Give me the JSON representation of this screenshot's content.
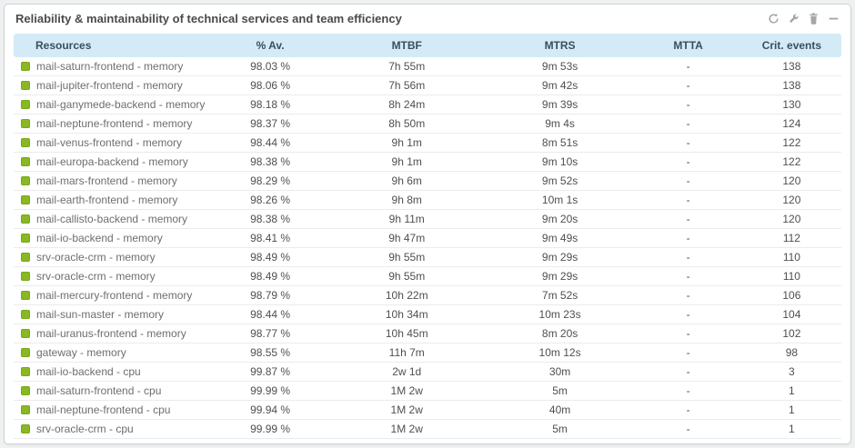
{
  "panel": {
    "title": "Reliability & maintainability of technical services and team efficiency",
    "toolbar": {
      "icons": [
        "refresh-icon",
        "wrench-icon",
        "trash-icon",
        "minimize-icon"
      ]
    },
    "colors": {
      "header_bg": "#d4ebf7",
      "status_ok": "#88b922",
      "panel_border": "#cfd3d5"
    }
  },
  "table": {
    "columns": [
      "Resources",
      "% Av.",
      "MTBF",
      "MTRS",
      "MTTA",
      "Crit. events"
    ],
    "rows": [
      {
        "resource": "mail-saturn-frontend - memory",
        "availability": "98.03 %",
        "mtbf": "7h 55m",
        "mtrs": "9m 53s",
        "mtta": "-",
        "crit_events": "138"
      },
      {
        "resource": "mail-jupiter-frontend - memory",
        "availability": "98.06 %",
        "mtbf": "7h 56m",
        "mtrs": "9m 42s",
        "mtta": "-",
        "crit_events": "138"
      },
      {
        "resource": "mail-ganymede-backend - memory",
        "availability": "98.18 %",
        "mtbf": "8h 24m",
        "mtrs": "9m 39s",
        "mtta": "-",
        "crit_events": "130"
      },
      {
        "resource": "mail-neptune-frontend - memory",
        "availability": "98.37 %",
        "mtbf": "8h 50m",
        "mtrs": "9m 4s",
        "mtta": "-",
        "crit_events": "124"
      },
      {
        "resource": "mail-venus-frontend - memory",
        "availability": "98.44 %",
        "mtbf": "9h 1m",
        "mtrs": "8m 51s",
        "mtta": "-",
        "crit_events": "122"
      },
      {
        "resource": "mail-europa-backend - memory",
        "availability": "98.38 %",
        "mtbf": "9h 1m",
        "mtrs": "9m 10s",
        "mtta": "-",
        "crit_events": "122"
      },
      {
        "resource": "mail-mars-frontend - memory",
        "availability": "98.29 %",
        "mtbf": "9h 6m",
        "mtrs": "9m 52s",
        "mtta": "-",
        "crit_events": "120"
      },
      {
        "resource": "mail-earth-frontend - memory",
        "availability": "98.26 %",
        "mtbf": "9h 8m",
        "mtrs": "10m 1s",
        "mtta": "-",
        "crit_events": "120"
      },
      {
        "resource": "mail-callisto-backend - memory",
        "availability": "98.38 %",
        "mtbf": "9h 11m",
        "mtrs": "9m 20s",
        "mtta": "-",
        "crit_events": "120"
      },
      {
        "resource": "mail-io-backend - memory",
        "availability": "98.41 %",
        "mtbf": "9h 47m",
        "mtrs": "9m 49s",
        "mtta": "-",
        "crit_events": "112"
      },
      {
        "resource": "srv-oracle-crm - memory",
        "availability": "98.49 %",
        "mtbf": "9h 55m",
        "mtrs": "9m 29s",
        "mtta": "-",
        "crit_events": "110"
      },
      {
        "resource": "srv-oracle-crm - memory",
        "availability": "98.49 %",
        "mtbf": "9h 55m",
        "mtrs": "9m 29s",
        "mtta": "-",
        "crit_events": "110"
      },
      {
        "resource": "mail-mercury-frontend - memory",
        "availability": "98.79 %",
        "mtbf": "10h 22m",
        "mtrs": "7m 52s",
        "mtta": "-",
        "crit_events": "106"
      },
      {
        "resource": "mail-sun-master - memory",
        "availability": "98.44 %",
        "mtbf": "10h 34m",
        "mtrs": "10m 23s",
        "mtta": "-",
        "crit_events": "104"
      },
      {
        "resource": "mail-uranus-frontend - memory",
        "availability": "98.77 %",
        "mtbf": "10h 45m",
        "mtrs": "8m 20s",
        "mtta": "-",
        "crit_events": "102"
      },
      {
        "resource": "gateway - memory",
        "availability": "98.55 %",
        "mtbf": "11h 7m",
        "mtrs": "10m 12s",
        "mtta": "-",
        "crit_events": "98"
      },
      {
        "resource": "mail-io-backend - cpu",
        "availability": "99.87 %",
        "mtbf": "2w 1d",
        "mtrs": "30m",
        "mtta": "-",
        "crit_events": "3"
      },
      {
        "resource": "mail-saturn-frontend - cpu",
        "availability": "99.99 %",
        "mtbf": "1M 2w",
        "mtrs": "5m",
        "mtta": "-",
        "crit_events": "1"
      },
      {
        "resource": "mail-neptune-frontend - cpu",
        "availability": "99.94 %",
        "mtbf": "1M 2w",
        "mtrs": "40m",
        "mtta": "-",
        "crit_events": "1"
      },
      {
        "resource": "srv-oracle-crm - cpu",
        "availability": "99.99 %",
        "mtbf": "1M 2w",
        "mtrs": "5m",
        "mtta": "-",
        "crit_events": "1"
      }
    ]
  }
}
